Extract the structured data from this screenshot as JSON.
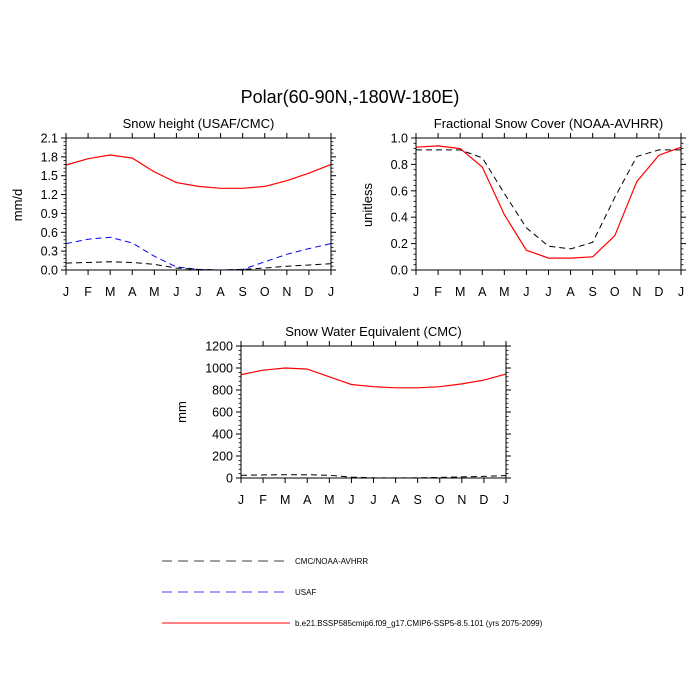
{
  "figure_title": "Polar(60-90N,-180W-180E)",
  "month_labels": [
    "J",
    "F",
    "M",
    "A",
    "M",
    "J",
    "J",
    "A",
    "S",
    "O",
    "N",
    "D",
    "J"
  ],
  "colors": {
    "model": "#ff0000",
    "obs_primary": "#000000",
    "obs_secondary": "#0000ff",
    "axis": "#000000"
  },
  "legend": [
    {
      "label": "CMC/NOAA-AVHRR",
      "color": "#000000",
      "dash": "dashed"
    },
    {
      "label": "USAF",
      "color": "#0000ff",
      "dash": "dashed"
    },
    {
      "label": "b.e21.BSSP585cmip6.f09_g17.CMIP6-SSP5-8.5.101 (yrs 2075-2099)",
      "color": "#ff0000",
      "dash": "solid"
    }
  ],
  "chart_data": [
    {
      "type": "line",
      "title": "Snow height (USAF/CMC)",
      "xlabel": "",
      "ylabel": "mm/d",
      "ylim": [
        0,
        2.1
      ],
      "yticks": [
        "0.0",
        "0.3",
        "0.6",
        "0.9",
        "1.2",
        "1.5",
        "1.8",
        "2.1"
      ],
      "x": [
        "J",
        "F",
        "M",
        "A",
        "M",
        "J",
        "J",
        "A",
        "S",
        "O",
        "N",
        "D",
        "J"
      ],
      "series": [
        {
          "key": "model",
          "values": [
            1.67,
            1.77,
            1.83,
            1.78,
            1.56,
            1.39,
            1.33,
            1.3,
            1.3,
            1.33,
            1.42,
            1.54,
            1.68
          ]
        },
        {
          "key": "obs_secondary",
          "values": [
            0.42,
            0.49,
            0.52,
            0.43,
            0.22,
            0.05,
            0.01,
            0.0,
            0.01,
            0.13,
            0.25,
            0.34,
            0.42
          ]
        },
        {
          "key": "obs_primary",
          "values": [
            0.11,
            0.12,
            0.13,
            0.12,
            0.09,
            0.03,
            0.01,
            0.0,
            0.01,
            0.03,
            0.06,
            0.08,
            0.1
          ]
        }
      ]
    },
    {
      "type": "line",
      "title": "Fractional Snow Cover (NOAA-AVHRR)",
      "xlabel": "",
      "ylabel": "unitless",
      "ylim": [
        0,
        1.0
      ],
      "yticks": [
        "0.0",
        "0.2",
        "0.4",
        "0.6",
        "0.8",
        "1.0"
      ],
      "x": [
        "J",
        "F",
        "M",
        "A",
        "M",
        "J",
        "J",
        "A",
        "S",
        "O",
        "N",
        "D",
        "J"
      ],
      "series": [
        {
          "key": "obs_primary",
          "values": [
            0.91,
            0.91,
            0.91,
            0.85,
            0.58,
            0.32,
            0.18,
            0.16,
            0.21,
            0.55,
            0.86,
            0.91,
            0.91
          ]
        },
        {
          "key": "model",
          "values": [
            0.93,
            0.94,
            0.92,
            0.78,
            0.42,
            0.15,
            0.09,
            0.09,
            0.1,
            0.26,
            0.67,
            0.87,
            0.93
          ]
        }
      ]
    },
    {
      "type": "line",
      "title": "Snow Water Equivalent (CMC)",
      "xlabel": "",
      "ylabel": "mm",
      "ylim": [
        0,
        1200
      ],
      "yticks": [
        "0",
        "200",
        "400",
        "600",
        "800",
        "1000",
        "1200"
      ],
      "x": [
        "J",
        "F",
        "M",
        "A",
        "M",
        "J",
        "J",
        "A",
        "S",
        "O",
        "N",
        "D",
        "J"
      ],
      "series": [
        {
          "key": "model",
          "values": [
            940,
            980,
            1000,
            990,
            920,
            850,
            830,
            820,
            820,
            830,
            855,
            890,
            945
          ]
        },
        {
          "key": "obs_primary",
          "values": [
            25,
            28,
            30,
            30,
            25,
            8,
            2,
            1,
            2,
            5,
            10,
            15,
            22
          ]
        }
      ]
    }
  ]
}
